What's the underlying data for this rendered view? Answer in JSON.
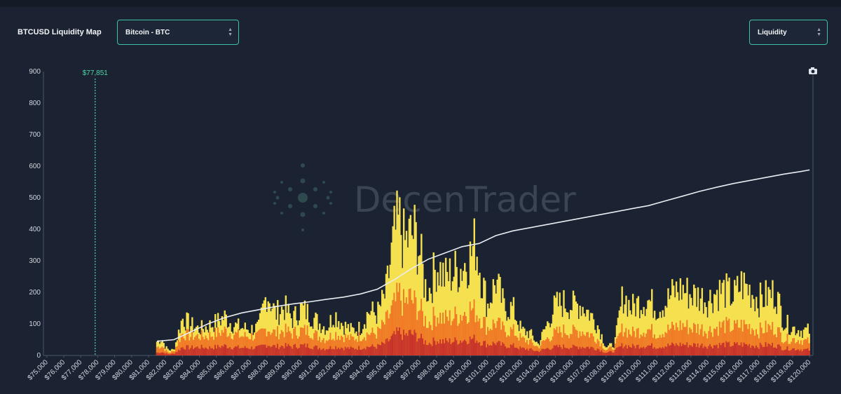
{
  "header": {
    "title": "BTCUSD Liquidity Map",
    "asset_select": "Bitcoin - BTC",
    "metric_select": "Liquidity"
  },
  "watermark": {
    "brand_a": "Decen",
    "brand_b": "Trader"
  },
  "colors": {
    "background": "#1b2332",
    "accent": "#3fc1a5",
    "bar_high": "#f5e04f",
    "bar_mid": "#f07a26",
    "bar_low": "#c7322a",
    "cumulative_line": "#e9edf2",
    "current_price": "#4fd6a8"
  },
  "chart_data": {
    "type": "bar",
    "title": "BTCUSD Liquidity Map",
    "ylim": [
      0,
      900
    ],
    "yticks": [
      0,
      100,
      200,
      300,
      400,
      500,
      600,
      700,
      800,
      900
    ],
    "xlim": [
      74800,
      120200
    ],
    "xticks": [
      "$75,000",
      "$76,000",
      "$77,000",
      "$78,000",
      "$79,000",
      "$80,000",
      "$81,000",
      "$82,000",
      "$83,000",
      "$84,000",
      "$85,000",
      "$86,000",
      "$87,000",
      "$88,000",
      "$89,000",
      "$90,000",
      "$91,000",
      "$92,000",
      "$93,000",
      "$94,000",
      "$95,000",
      "$96,000",
      "$97,000",
      "$98,000",
      "$99,000",
      "$100,000",
      "$101,000",
      "$102,000",
      "$103,000",
      "$104,000",
      "$105,000",
      "$106,000",
      "$107,000",
      "$108,000",
      "$109,000",
      "$110,000",
      "$111,000",
      "$112,000",
      "$113,000",
      "$114,000",
      "$115,000",
      "$116,000",
      "$117,000",
      "$118,000",
      "$119,000",
      "$120,000"
    ],
    "current_price": {
      "value": 77851,
      "label": "$77,851"
    },
    "series": [
      {
        "kind": "stacked-bar-envelope",
        "note_units": "USD price vs liquidity",
        "x": [
          81500,
          81800,
          82000,
          82200,
          82500,
          83000,
          83500,
          84000,
          84500,
          85000,
          85500,
          86000,
          86500,
          87000,
          87500,
          88000,
          88500,
          89000,
          89500,
          90000,
          90500,
          91000,
          91500,
          92000,
          92500,
          93000,
          93500,
          94000,
          94500,
          95000,
          95500,
          95800,
          96100,
          96400,
          96700,
          97000,
          97300,
          97600,
          98000,
          98500,
          99000,
          99500,
          100000,
          100300,
          100600,
          101000,
          101500,
          102000,
          102500,
          103000,
          103500,
          104000,
          104500,
          105000,
          105500,
          106000,
          106500,
          107000,
          107500,
          108000,
          108500,
          109000,
          109500,
          110000,
          110500,
          111000,
          111500,
          112000,
          112500,
          113000,
          113500,
          114000,
          114500,
          115000,
          115500,
          116000,
          116500,
          117000,
          117500,
          118000,
          118500,
          119000,
          119500,
          120000
        ],
        "top": [
          50,
          60,
          30,
          20,
          20,
          135,
          110,
          95,
          105,
          120,
          140,
          110,
          100,
          95,
          100,
          230,
          150,
          175,
          130,
          170,
          150,
          120,
          100,
          150,
          110,
          90,
          100,
          160,
          150,
          220,
          430,
          480,
          400,
          430,
          440,
          380,
          250,
          240,
          330,
          280,
          300,
          320,
          360,
          410,
          300,
          180,
          270,
          170,
          170,
          90,
          80,
          40,
          110,
          180,
          190,
          180,
          185,
          155,
          110,
          30,
          40,
          220,
          170,
          195,
          200,
          170,
          190,
          230,
          240,
          220,
          215,
          200,
          230,
          235,
          210,
          260,
          235,
          200,
          215,
          230,
          120,
          100,
          90,
          90
        ],
        "mid": [
          30,
          35,
          20,
          10,
          15,
          80,
          70,
          70,
          70,
          80,
          90,
          80,
          70,
          70,
          70,
          100,
          80,
          90,
          80,
          90,
          90,
          70,
          60,
          80,
          70,
          60,
          70,
          80,
          80,
          120,
          180,
          220,
          180,
          210,
          190,
          170,
          130,
          120,
          150,
          130,
          140,
          150,
          170,
          160,
          140,
          100,
          120,
          90,
          90,
          60,
          50,
          30,
          60,
          80,
          90,
          85,
          90,
          80,
          60,
          20,
          30,
          100,
          80,
          90,
          95,
          80,
          90,
          100,
          110,
          100,
          100,
          90,
          100,
          110,
          100,
          110,
          105,
          90,
          100,
          100,
          60,
          60,
          55,
          50
        ],
        "low": [
          10,
          12,
          8,
          5,
          6,
          30,
          28,
          30,
          28,
          30,
          35,
          30,
          28,
          28,
          28,
          40,
          32,
          35,
          32,
          36,
          35,
          28,
          25,
          32,
          28,
          25,
          28,
          32,
          32,
          45,
          70,
          85,
          70,
          80,
          75,
          65,
          50,
          45,
          55,
          50,
          52,
          55,
          60,
          60,
          50,
          40,
          45,
          35,
          35,
          25,
          22,
          15,
          25,
          30,
          32,
          30,
          32,
          30,
          25,
          10,
          15,
          38,
          32,
          35,
          36,
          32,
          35,
          38,
          40,
          38,
          38,
          35,
          38,
          40,
          38,
          40,
          38,
          35,
          38,
          38,
          25,
          25,
          22,
          20
        ]
      },
      {
        "kind": "cumulative-line",
        "x": [
          81500,
          82500,
          83500,
          84500,
          85500,
          86500,
          87500,
          88500,
          89500,
          90500,
          91500,
          92500,
          93500,
          94500,
          95500,
          96500,
          97500,
          98500,
          99500,
          100500,
          101500,
          102500,
          103500,
          104500,
          105500,
          106500,
          107500,
          108500,
          109500,
          110500,
          111500,
          112500,
          113500,
          114500,
          115500,
          116500,
          117500,
          118500,
          119500,
          120000
        ],
        "y": [
          45,
          50,
          75,
          100,
          120,
          135,
          145,
          155,
          163,
          170,
          178,
          185,
          195,
          210,
          240,
          275,
          305,
          325,
          345,
          355,
          380,
          395,
          405,
          415,
          425,
          435,
          445,
          455,
          465,
          475,
          490,
          505,
          520,
          533,
          545,
          555,
          565,
          575,
          583,
          588
        ]
      }
    ]
  }
}
